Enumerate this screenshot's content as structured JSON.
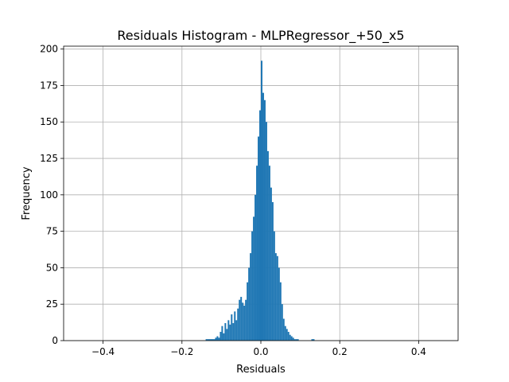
{
  "chart_data": {
    "type": "bar",
    "title": "Residuals Histogram - MLPRegressor_+50_x5",
    "xlabel": "Residuals",
    "ylabel": "Frequency",
    "xlim": [
      -0.5,
      0.5
    ],
    "ylim": [
      0,
      202
    ],
    "x_ticks": [
      -0.4,
      -0.2,
      0.0,
      0.2,
      0.4
    ],
    "x_tick_labels": [
      "−0.4",
      "−0.2",
      "0.0",
      "0.2",
      "0.4"
    ],
    "y_ticks": [
      0,
      25,
      50,
      75,
      100,
      125,
      150,
      175,
      200
    ],
    "y_tick_labels": [
      "0",
      "25",
      "50",
      "75",
      "100",
      "125",
      "150",
      "175",
      "200"
    ],
    "grid": true,
    "bar_color": "#1f77b4",
    "bin_width": 0.004,
    "bins": [
      {
        "x": -0.138,
        "y": 1
      },
      {
        "x": -0.134,
        "y": 1
      },
      {
        "x": -0.13,
        "y": 1
      },
      {
        "x": -0.126,
        "y": 1
      },
      {
        "x": -0.122,
        "y": 1
      },
      {
        "x": -0.118,
        "y": 1
      },
      {
        "x": -0.114,
        "y": 2
      },
      {
        "x": -0.11,
        "y": 3
      },
      {
        "x": -0.106,
        "y": 2
      },
      {
        "x": -0.102,
        "y": 6
      },
      {
        "x": -0.098,
        "y": 10
      },
      {
        "x": -0.094,
        "y": 5
      },
      {
        "x": -0.09,
        "y": 12
      },
      {
        "x": -0.086,
        "y": 8
      },
      {
        "x": -0.082,
        "y": 14
      },
      {
        "x": -0.078,
        "y": 11
      },
      {
        "x": -0.074,
        "y": 18
      },
      {
        "x": -0.07,
        "y": 12
      },
      {
        "x": -0.066,
        "y": 20
      },
      {
        "x": -0.062,
        "y": 14
      },
      {
        "x": -0.058,
        "y": 22
      },
      {
        "x": -0.054,
        "y": 28
      },
      {
        "x": -0.05,
        "y": 30
      },
      {
        "x": -0.046,
        "y": 26
      },
      {
        "x": -0.042,
        "y": 24
      },
      {
        "x": -0.038,
        "y": 28
      },
      {
        "x": -0.034,
        "y": 40
      },
      {
        "x": -0.03,
        "y": 50
      },
      {
        "x": -0.026,
        "y": 60
      },
      {
        "x": -0.022,
        "y": 75
      },
      {
        "x": -0.018,
        "y": 85
      },
      {
        "x": -0.014,
        "y": 100
      },
      {
        "x": -0.01,
        "y": 120
      },
      {
        "x": -0.006,
        "y": 140
      },
      {
        "x": -0.002,
        "y": 158
      },
      {
        "x": 0.002,
        "y": 192
      },
      {
        "x": 0.006,
        "y": 170
      },
      {
        "x": 0.01,
        "y": 165
      },
      {
        "x": 0.014,
        "y": 150
      },
      {
        "x": 0.018,
        "y": 130
      },
      {
        "x": 0.022,
        "y": 120
      },
      {
        "x": 0.026,
        "y": 105
      },
      {
        "x": 0.03,
        "y": 95
      },
      {
        "x": 0.034,
        "y": 75
      },
      {
        "x": 0.038,
        "y": 60
      },
      {
        "x": 0.042,
        "y": 58
      },
      {
        "x": 0.046,
        "y": 50
      },
      {
        "x": 0.05,
        "y": 40
      },
      {
        "x": 0.054,
        "y": 25
      },
      {
        "x": 0.058,
        "y": 15
      },
      {
        "x": 0.062,
        "y": 10
      },
      {
        "x": 0.066,
        "y": 8
      },
      {
        "x": 0.07,
        "y": 6
      },
      {
        "x": 0.074,
        "y": 4
      },
      {
        "x": 0.078,
        "y": 3
      },
      {
        "x": 0.082,
        "y": 2
      },
      {
        "x": 0.086,
        "y": 1
      },
      {
        "x": 0.09,
        "y": 1
      },
      {
        "x": 0.094,
        "y": 1
      },
      {
        "x": 0.13,
        "y": 1
      },
      {
        "x": 0.134,
        "y": 1
      }
    ]
  }
}
